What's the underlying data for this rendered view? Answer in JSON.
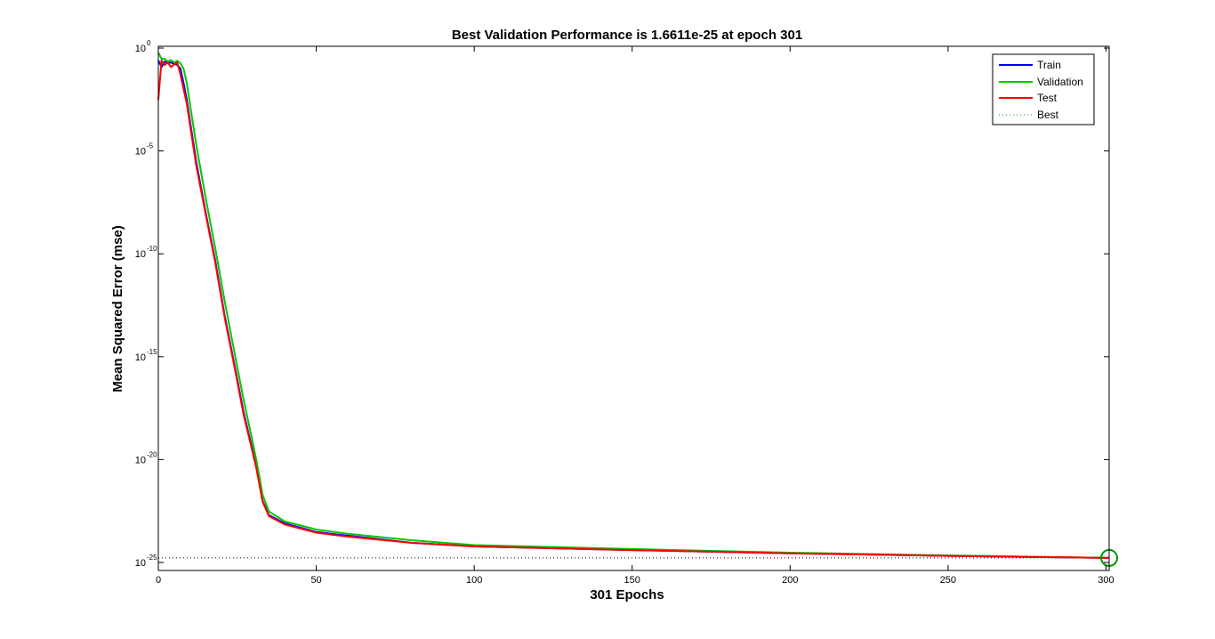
{
  "chart_data": {
    "type": "line",
    "title": "Best Validation Performance is 1.6611e-25 at epoch 301",
    "xlabel": "301 Epochs",
    "ylabel": "Mean Squared Error  (mse)",
    "xlim": [
      0,
      301
    ],
    "ylim": [
      1e-25,
      1
    ],
    "y_scale": "log",
    "grid": false,
    "legend_position": "top-right",
    "x_ticks": [
      "0",
      "50",
      "100",
      "150",
      "200",
      "250",
      "300"
    ],
    "y_ticks": [
      {
        "base": "10",
        "exp": "0"
      },
      {
        "base": "10",
        "exp": "-5"
      },
      {
        "base": "10",
        "exp": "-10"
      },
      {
        "base": "10",
        "exp": "-15"
      },
      {
        "base": "10",
        "exp": "-20"
      },
      {
        "base": "10",
        "exp": "-25"
      }
    ],
    "series": [
      {
        "name": "Train",
        "color": "#0000ff",
        "x": [
          0,
          1,
          2,
          3,
          4,
          5,
          6,
          7,
          8,
          9,
          10,
          12,
          15,
          18,
          21,
          24,
          27,
          29,
          31,
          33,
          35,
          40,
          50,
          60,
          80,
          100,
          150,
          200,
          250,
          301
        ],
        "y": [
          0.25,
          0.12,
          0.22,
          0.18,
          0.2,
          0.17,
          0.15,
          0.1,
          0.02,
          0.003,
          0.0003,
          3e-06,
          1e-08,
          5e-11,
          1e-13,
          5e-16,
          2e-18,
          1e-19,
          5e-21,
          1e-22,
          2e-23,
          8e-24,
          3e-24,
          2e-24,
          9e-25,
          6e-25,
          4e-25,
          2.8e-25,
          2.1e-25,
          1.66e-25
        ]
      },
      {
        "name": "Validation",
        "color": "#00c800",
        "x": [
          0,
          1,
          2,
          3,
          4,
          5,
          6,
          7,
          8,
          9,
          10,
          12,
          15,
          18,
          21,
          24,
          27,
          29,
          31,
          33,
          35,
          40,
          50,
          60,
          80,
          100,
          150,
          200,
          250,
          301
        ],
        "y": [
          0.6,
          0.3,
          0.3,
          0.22,
          0.26,
          0.2,
          0.24,
          0.18,
          0.1,
          0.02,
          0.002,
          2e-05,
          5e-08,
          2e-10,
          5e-13,
          2e-15,
          8e-18,
          3e-19,
          1e-20,
          2e-22,
          3e-23,
          1e-23,
          4e-24,
          2.5e-24,
          1.2e-24,
          7e-25,
          4.5e-25,
          3e-25,
          2.2e-25,
          1.6611e-25
        ]
      },
      {
        "name": "Test",
        "color": "#ff0000",
        "x": [
          0,
          1,
          2,
          3,
          4,
          5,
          6,
          7,
          8,
          9,
          10,
          12,
          15,
          18,
          21,
          24,
          27,
          29,
          31,
          33,
          35,
          40,
          50,
          60,
          80,
          100,
          150,
          200,
          250,
          301
        ],
        "y": [
          0.003,
          0.25,
          0.15,
          0.2,
          0.12,
          0.16,
          0.2,
          0.05,
          0.01,
          0.002,
          0.0002,
          2e-06,
          8e-09,
          4e-11,
          8e-14,
          4e-16,
          1.5e-18,
          8e-20,
          4e-21,
          9e-23,
          1.8e-23,
          7e-24,
          2.8e-24,
          1.8e-24,
          9e-25,
          6e-25,
          4e-25,
          2.8e-25,
          2.1e-25,
          1.66e-25
        ]
      }
    ],
    "best": {
      "name": "Best",
      "epoch": 301,
      "value": 1.6611e-25,
      "color": "#009600"
    }
  }
}
